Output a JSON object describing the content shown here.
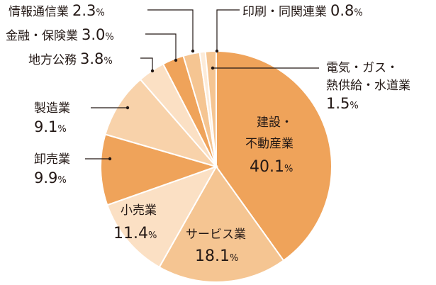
{
  "chart_data": {
    "type": "pie",
    "unit": "%",
    "colors": {
      "dark": "#EFA35A",
      "mid": "#F5C592",
      "light": "#FBE0C4",
      "pale": "#FDEBD8"
    },
    "slices": [
      {
        "key": "construction",
        "label": "建設・不動産業",
        "label_lines": [
          "建設・",
          "不動産業"
        ],
        "value": 40.1,
        "color": "#EFA35A"
      },
      {
        "key": "service",
        "label": "サービス業",
        "value": 18.1,
        "color": "#F5C592"
      },
      {
        "key": "retail",
        "label": "小売業",
        "value": 11.4,
        "color": "#FBE0C4"
      },
      {
        "key": "wholesale",
        "label": "卸売業",
        "value": 9.9,
        "color": "#EFA35A"
      },
      {
        "key": "manufacturing",
        "label": "製造業",
        "value": 9.1,
        "color": "#F8D2AA"
      },
      {
        "key": "local",
        "label": "地方公務",
        "value": 3.8,
        "color": "#FBE0C4"
      },
      {
        "key": "finance",
        "label": "金融・保険業",
        "value": 3.0,
        "color": "#EFA35A"
      },
      {
        "key": "info",
        "label": "情報通信業",
        "value": 2.3,
        "color": "#F5C592"
      },
      {
        "key": "printing",
        "label": "印刷・同関連業",
        "value": 0.8,
        "color": "#FDEBD8"
      },
      {
        "key": "utility",
        "label": "電気・ガス・熱供給・水道業",
        "label_lines": [
          "電気・ガス・",
          "熱供給・水道業"
        ],
        "value": 1.5,
        "color": "#F5C592"
      }
    ]
  }
}
